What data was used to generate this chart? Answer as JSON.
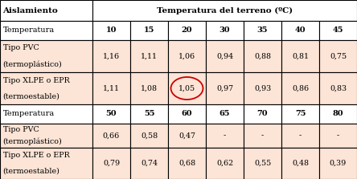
{
  "title_col": "Aislamiento",
  "title_temp": "Temperatura del terreno (ºC)",
  "header1": [
    "10",
    "15",
    "20",
    "30",
    "35",
    "40",
    "45"
  ],
  "header2": [
    "50",
    "55",
    "60",
    "65",
    "70",
    "75",
    "80"
  ],
  "row1_label1": "Tipo PVC",
  "row1_label2": "(termoplástico)",
  "row1_vals1": [
    "1,16",
    "1,11",
    "1,06",
    "0,94",
    "0,88",
    "0,81",
    "0,75"
  ],
  "row2_label1": "Tipo XLPE o EPR",
  "row2_label2": "(termoestable)",
  "row2_vals1": [
    "1,11",
    "1,08",
    "1,05",
    "0,97",
    "0,93",
    "0,86",
    "0,83"
  ],
  "row3_label1": "Tipo PVC",
  "row3_label2": "(termoplástico)",
  "row3_vals2": [
    "0,66",
    "0,58",
    "0,47",
    "-",
    "-",
    "-",
    "-"
  ],
  "row4_label1": "Tipo XLPE o EPR",
  "row4_label2": "(termoestable)",
  "row4_vals2": [
    "0,79",
    "0,74",
    "0,68",
    "0,62",
    "0,55",
    "0,48",
    "0,39"
  ],
  "bg_white": "#ffffff",
  "bg_data1": "#fce4d6",
  "bg_data2": "#fce4d6",
  "bg_header_row": "#ffffff",
  "circle_color": "#cc0000",
  "lw": 0.8
}
